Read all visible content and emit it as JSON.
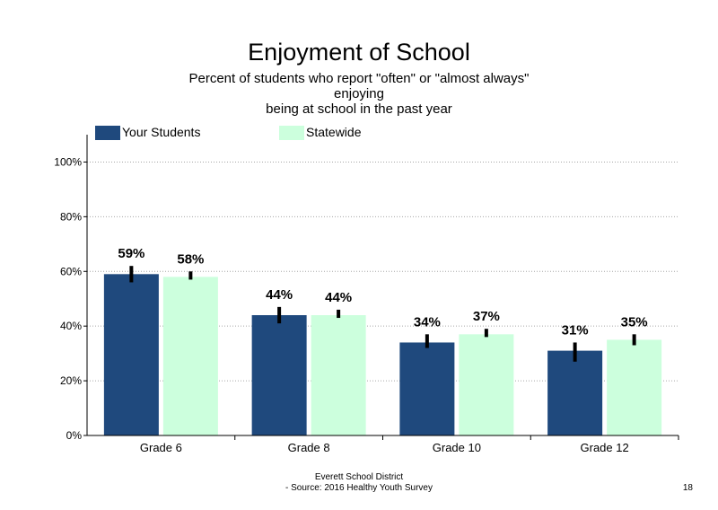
{
  "chart_data": {
    "type": "bar",
    "title": "Enjoyment of School",
    "subtitle_lines": [
      "Percent of students  who report \"often\" or \"almost always\"",
      "enjoying",
      "being at school in the past year"
    ],
    "categories": [
      "Grade 6",
      "Grade 8",
      "Grade 10",
      "Grade 12"
    ],
    "series": [
      {
        "name": "Your Students",
        "color": "#1f497d",
        "values": [
          59,
          44,
          34,
          31
        ],
        "labels": [
          "59%",
          "44%",
          "34%",
          "31%"
        ],
        "error_low": [
          56,
          41,
          32,
          27
        ],
        "error_high": [
          62,
          47,
          37,
          34
        ]
      },
      {
        "name": "Statewide",
        "color": "#ccffdd",
        "values": [
          58,
          44,
          37,
          35
        ],
        "labels": [
          "58%",
          "44%",
          "37%",
          "35%"
        ],
        "error_low": [
          57,
          43,
          36,
          33
        ],
        "error_high": [
          60,
          46,
          39,
          37
        ]
      }
    ],
    "ylim": [
      0,
      110
    ],
    "yticks": [
      0,
      20,
      40,
      60,
      80,
      100
    ],
    "ytick_labels": [
      "0%",
      "20%",
      "40%",
      "60%",
      "80%",
      "100%"
    ],
    "gridlines": true,
    "legend_position": "top-left"
  },
  "footer": {
    "line1": "Everett School District",
    "line2": "- Source: 2016 Healthy  Youth Survey"
  },
  "page_number": "18"
}
